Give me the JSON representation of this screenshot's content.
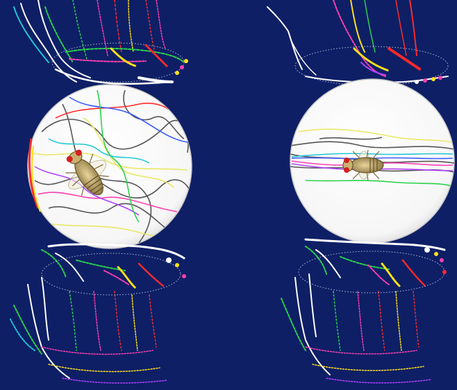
{
  "scene": {
    "background": "#0e1f66",
    "panels": [
      {
        "name": "left-panel",
        "view": "top",
        "sphere": "#ffffff"
      },
      {
        "name": "right-panel",
        "view": "side",
        "sphere": "#ffffff"
      }
    ],
    "trace_colors": [
      "#ffffff",
      "#ff2a2a",
      "#ffe01a",
      "#2bd14a",
      "#ff3fb0",
      "#20c8d8",
      "#3a5cff",
      "#b040ff",
      "#555555",
      "#e8e86a"
    ],
    "icon": "fly-icon"
  }
}
